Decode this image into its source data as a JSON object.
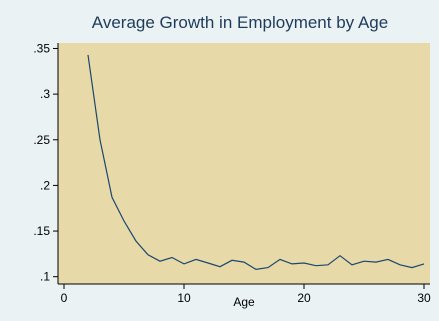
{
  "chart_data": {
    "type": "line",
    "title": "Average Growth in Employment by Age",
    "xlabel": "Age",
    "ylabel": "",
    "xlim": [
      0,
      30
    ],
    "ylim": [
      0.1,
      0.35
    ],
    "x_ticks": [
      0,
      10,
      20,
      30
    ],
    "x_tick_labels": [
      "0",
      "10",
      "20",
      "30"
    ],
    "y_ticks": [
      0.1,
      0.15,
      0.2,
      0.25,
      0.3,
      0.35
    ],
    "y_tick_labels": [
      ".1",
      ".15",
      ".2",
      ".25",
      ".3",
      ".35"
    ],
    "grid": false,
    "series": [
      {
        "x": [
          2,
          3,
          4,
          5,
          6,
          7,
          8,
          9,
          10,
          11,
          12,
          13,
          14,
          15,
          16,
          17,
          18,
          19,
          20,
          21,
          22,
          23,
          24,
          25,
          26,
          27,
          28,
          29,
          30
        ],
        "values": [
          0.343,
          0.25,
          0.187,
          0.161,
          0.139,
          0.124,
          0.117,
          0.121,
          0.114,
          0.119,
          0.115,
          0.111,
          0.118,
          0.116,
          0.108,
          0.11,
          0.119,
          0.114,
          0.115,
          0.112,
          0.113,
          0.123,
          0.113,
          0.117,
          0.116,
          0.119,
          0.113,
          0.11,
          0.114
        ]
      }
    ]
  },
  "colors": {
    "frame_background": "#eaf2f3",
    "plot_background": "#e8d9a8",
    "series_line": "#1a476f",
    "axis": "#000000",
    "title": "#1e3b5c"
  }
}
